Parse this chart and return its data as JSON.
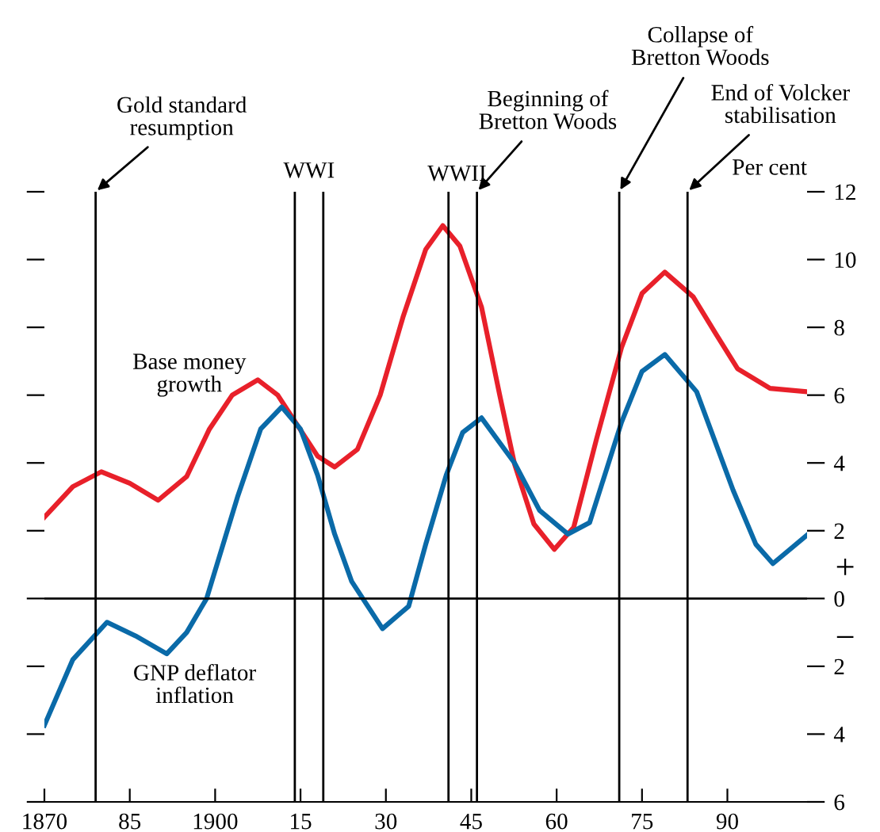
{
  "chart_data": {
    "type": "line",
    "ylabel": "Per cent",
    "x": [
      1870,
      1875,
      1880,
      1885,
      1890,
      1895,
      1899,
      1903,
      1907.5,
      1911,
      1914.5,
      1918,
      1921,
      1925,
      1929,
      1933,
      1937,
      1940,
      1943,
      1946.8,
      1950,
      1952.6,
      1956,
      1959.6,
      1963,
      1967,
      1971.4,
      1975,
      1979,
      1984,
      1988,
      1991.8,
      1997.5,
      2004
    ],
    "series": [
      {
        "name": "Base money\ngrowth",
        "color": "#e8202a",
        "values": [
          2.4,
          3.3,
          3.74,
          3.4,
          2.9,
          3.6,
          5.0,
          6.0,
          6.45,
          6.0,
          5.1,
          4.2,
          3.88,
          4.4,
          6.0,
          8.3,
          10.3,
          11.0,
          10.4,
          8.6,
          6.0,
          3.97,
          2.2,
          1.45,
          2.1,
          4.7,
          7.4,
          9.0,
          9.63,
          8.9,
          7.8,
          6.78,
          6.2,
          6.1
        ]
      },
      {
        "name": "GNP deflator\ninflation",
        "color": "#0a6aa8",
        "x": [
          1870,
          1875,
          1881,
          1886,
          1891.5,
          1895,
          1898.5,
          1904,
          1908,
          1911.7,
          1915,
          1918,
          1921,
          1924,
          1929.4,
          1934,
          1937,
          1940.6,
          1943.5,
          1946.8,
          1952.6,
          1957,
          1962,
          1965.8,
          1971.4,
          1975,
          1979,
          1984.6,
          1991,
          1995,
          1998,
          2004
        ],
        "values": [
          -3.74,
          -1.8,
          -0.7,
          -1.1,
          -1.63,
          -1.0,
          0,
          3.03,
          5.0,
          5.65,
          5.0,
          3.64,
          1.9,
          0.5,
          -0.89,
          -0.23,
          1.6,
          3.64,
          4.9,
          5.33,
          4.0,
          2.6,
          1.9,
          2.24,
          5.2,
          6.7,
          7.2,
          6.1,
          3.2,
          1.6,
          1.03,
          1.87
        ]
      }
    ],
    "xlim": [
      1870,
      2004
    ],
    "xticks": [
      1870,
      {
        "value": 1885,
        "label": "85"
      },
      1900,
      {
        "value": 1915,
        "label": "15"
      },
      {
        "value": 1930,
        "label": "30"
      },
      {
        "value": 1945,
        "label": "45"
      },
      {
        "value": 1960,
        "label": "60"
      },
      {
        "value": 1975,
        "label": "75"
      },
      {
        "value": 1990,
        "label": "90"
      }
    ],
    "ylim": [
      -6,
      12
    ],
    "yticks": [
      {
        "value": -6,
        "label": "6"
      },
      {
        "value": -4,
        "label": "4"
      },
      {
        "value": -2,
        "label": "2"
      },
      0,
      2,
      4,
      6,
      8,
      10,
      12
    ],
    "ref_lines": [
      {
        "axis": "y",
        "value": 0,
        "label": null
      },
      {
        "axis": "x",
        "value": 1879,
        "label": "Gold standard\nresumption"
      },
      {
        "axis": "x",
        "value": 1914,
        "label": "WWI"
      },
      {
        "axis": "x",
        "value": 1919,
        "label": null
      },
      {
        "axis": "x",
        "value": 1941,
        "label": "WWII"
      },
      {
        "axis": "x",
        "value": 1946,
        "label": "Beginning of\nBretton Woods"
      },
      {
        "axis": "x",
        "value": 1971,
        "label": "Collapse of\nBretton Woods"
      },
      {
        "axis": "x",
        "value": 1983,
        "label": "End of Volcker\nstabilisation"
      }
    ],
    "annotations": [
      "+",
      "−"
    ],
    "grid": false,
    "marker": "none",
    "line_style": "solid"
  }
}
